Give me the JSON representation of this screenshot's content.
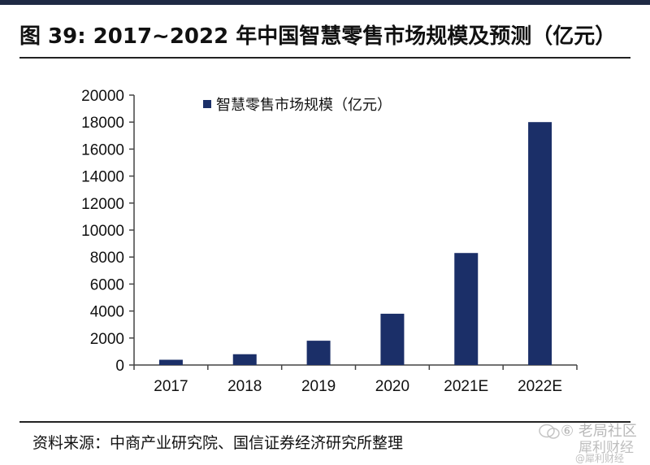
{
  "title": "图 39: 2017~2022 年中国智慧零售市场规模及预测（亿元）",
  "source": "资料来源：中商产业研究院、国信证券经济研究所整理",
  "watermark": {
    "line1": "⑥ 老局社区",
    "line2": "犀利财经",
    "line3": "@犀利财经"
  },
  "colors": {
    "bar": "#1b2f68",
    "axis": "#444444",
    "text": "#111111"
  },
  "chart_data": {
    "type": "bar",
    "categories": [
      "2017",
      "2018",
      "2019",
      "2020",
      "2021E",
      "2022E"
    ],
    "series": [
      {
        "name": "智慧零售市场规模（亿元）",
        "values": [
          390,
          800,
          1800,
          3800,
          8300,
          18000
        ]
      }
    ],
    "ylim": [
      0,
      20000
    ],
    "yticks": [
      "0",
      "2000",
      "4000",
      "6000",
      "8000",
      "10000",
      "12000",
      "14000",
      "16000",
      "18000",
      "20000"
    ],
    "legend_position": "top-left",
    "grid": false
  }
}
